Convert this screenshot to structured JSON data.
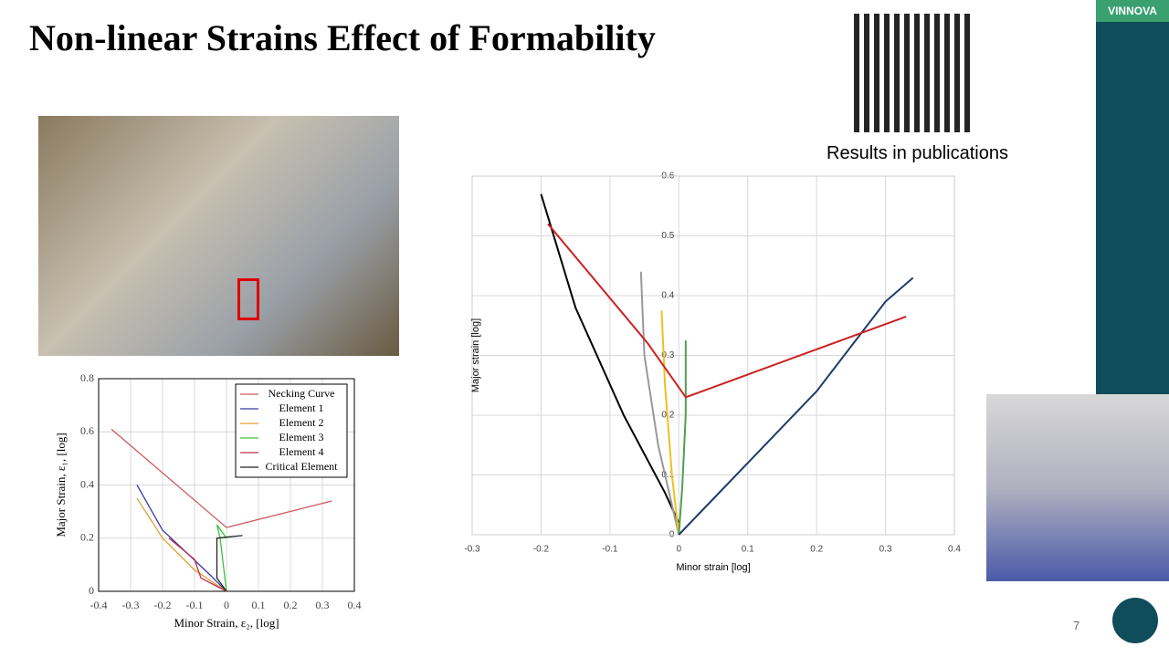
{
  "title": "Non-linear Strains Effect of Formability",
  "caption": "Results in publications",
  "page_number": "7",
  "logo": "VINNOVA",
  "chart_data": [
    {
      "type": "line",
      "xlabel": "Minor Strain, ε₂, [log]",
      "ylabel": "Major Strain, ε₁, [log]",
      "xlim": [
        -0.4,
        0.4
      ],
      "xticks": [
        -0.4,
        -0.3,
        -0.2,
        -0.1,
        0,
        0.1,
        0.2,
        0.3,
        0.4
      ],
      "ylim": [
        0,
        0.8
      ],
      "yticks": [
        0,
        0.2,
        0.4,
        0.6,
        0.8
      ],
      "grid": true,
      "legend": "upper right",
      "series": [
        {
          "name": "Necking Curve",
          "color": "#d05a5a",
          "x": [
            -0.36,
            0,
            0.33
          ],
          "values": [
            0.61,
            0.24,
            0.34
          ]
        },
        {
          "name": "Element 1",
          "color": "#3a3aa8",
          "x": [
            -0.28,
            -0.2,
            -0.12,
            -0.05,
            0
          ],
          "values": [
            0.4,
            0.23,
            0.14,
            0.06,
            0
          ]
        },
        {
          "name": "Element 2",
          "color": "#e0a030",
          "x": [
            -0.28,
            -0.2,
            -0.1,
            0
          ],
          "values": [
            0.35,
            0.2,
            0.08,
            0
          ]
        },
        {
          "name": "Element 3",
          "color": "#40c040",
          "x": [
            0,
            -0.01,
            -0.02,
            -0.03,
            0
          ],
          "values": [
            0,
            0.1,
            0.2,
            0.25,
            0.2
          ]
        },
        {
          "name": "Element 4",
          "color": "#c03050",
          "x": [
            -0.18,
            -0.1,
            -0.08,
            0
          ],
          "values": [
            0.2,
            0.12,
            0.05,
            0
          ]
        },
        {
          "name": "Critical Element",
          "color": "#202020",
          "x": [
            0,
            -0.03,
            -0.03,
            0.05
          ],
          "values": [
            0,
            0.05,
            0.2,
            0.21
          ]
        }
      ]
    },
    {
      "type": "line",
      "xlabel": "Minor strain [log]",
      "ylabel": "Major strain [log]",
      "xlim": [
        -0.3,
        0.4
      ],
      "xticks": [
        -0.3,
        -0.2,
        -0.1,
        0,
        0.1,
        0.2,
        0.3,
        0.4
      ],
      "ylim": [
        0,
        0.6
      ],
      "yticks": [
        0,
        0.1,
        0.2,
        0.3,
        0.4,
        0.5,
        0.6
      ],
      "grid": true,
      "series": [
        {
          "color": "#000000",
          "x": [
            -0.2,
            -0.15,
            -0.08,
            -0.02,
            0
          ],
          "values": [
            0.57,
            0.38,
            0.2,
            0.07,
            0.02
          ]
        },
        {
          "color": "#999999",
          "x": [
            -0.055,
            -0.05,
            -0.03,
            0
          ],
          "values": [
            0.44,
            0.3,
            0.15,
            0
          ]
        },
        {
          "color": "#f0c020",
          "x": [
            -0.025,
            -0.02,
            -0.01,
            0
          ],
          "values": [
            0.375,
            0.25,
            0.1,
            0
          ]
        },
        {
          "color": "#50a050",
          "x": [
            0.01,
            0.01,
            0.005,
            0
          ],
          "values": [
            0.325,
            0.2,
            0.08,
            0
          ]
        },
        {
          "color": "#1f3a6a",
          "x": [
            0,
            0.1,
            0.2,
            0.3,
            0.34
          ],
          "values": [
            0,
            0.12,
            0.24,
            0.39,
            0.43
          ]
        },
        {
          "color": "#cc2020",
          "x": [
            -0.19,
            -0.045,
            0.01,
            0.33
          ],
          "values": [
            0.52,
            0.32,
            0.23,
            0.365
          ]
        }
      ]
    }
  ]
}
